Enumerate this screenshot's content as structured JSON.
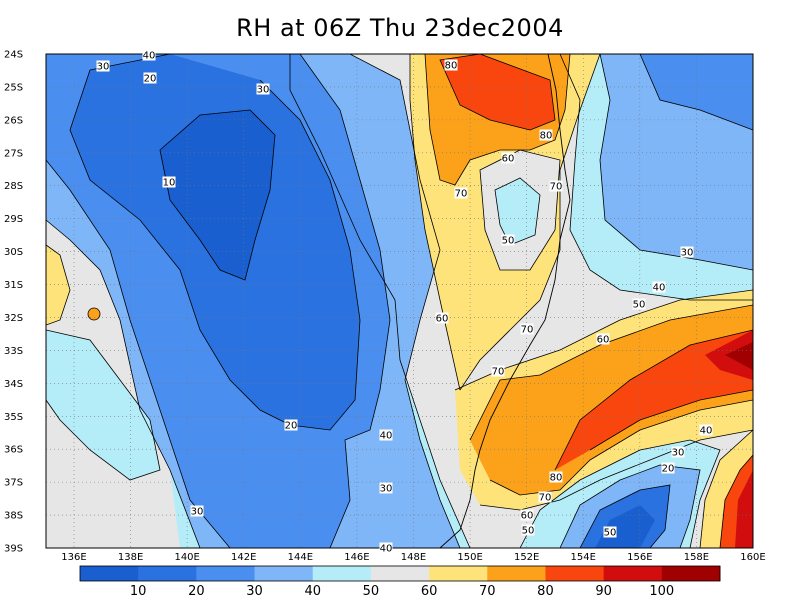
{
  "title": "RH at 06Z Thu 23dec2004",
  "lat_labels": [
    "24S",
    "25S",
    "26S",
    "27S",
    "28S",
    "29S",
    "30S",
    "31S",
    "32S",
    "33S",
    "34S",
    "35S",
    "36S",
    "37S",
    "38S",
    "39S"
  ],
  "lon_labels": [
    "136E",
    "138E",
    "140E",
    "142E",
    "144E",
    "146E",
    "148E",
    "150E",
    "152E",
    "154E",
    "156E",
    "158E",
    "160E"
  ],
  "colorbar": {
    "labels": [
      "10",
      "20",
      "30",
      "40",
      "50",
      "60",
      "70",
      "80",
      "90",
      "100"
    ],
    "colors": [
      "#1a5fd0",
      "#2a72e0",
      "#4a8ff0",
      "#7fb6f7",
      "#b4ecf8",
      "#e6e6e6",
      "#fde37a",
      "#fca21a",
      "#f8460e",
      "#d10d0d",
      "#a00000"
    ]
  },
  "contour_labels": [
    {
      "text": "40"
    },
    {
      "text": "30"
    },
    {
      "text": "20"
    },
    {
      "text": "30"
    },
    {
      "text": "10"
    },
    {
      "text": "80"
    },
    {
      "text": "80"
    },
    {
      "text": "60"
    },
    {
      "text": "70"
    },
    {
      "text": "70"
    },
    {
      "text": "50"
    },
    {
      "text": "30"
    },
    {
      "text": "40"
    },
    {
      "text": "50"
    },
    {
      "text": "60"
    },
    {
      "text": "60"
    },
    {
      "text": "70"
    },
    {
      "text": "70"
    },
    {
      "text": "60"
    },
    {
      "text": "50"
    },
    {
      "text": "20"
    },
    {
      "text": "40"
    },
    {
      "text": "30"
    },
    {
      "text": "30"
    },
    {
      "text": "40"
    },
    {
      "text": "40"
    },
    {
      "text": "30"
    },
    {
      "text": "20"
    },
    {
      "text": "80"
    },
    {
      "text": "70"
    },
    {
      "text": "60"
    },
    {
      "text": "50"
    },
    {
      "text": "10"
    }
  ]
}
